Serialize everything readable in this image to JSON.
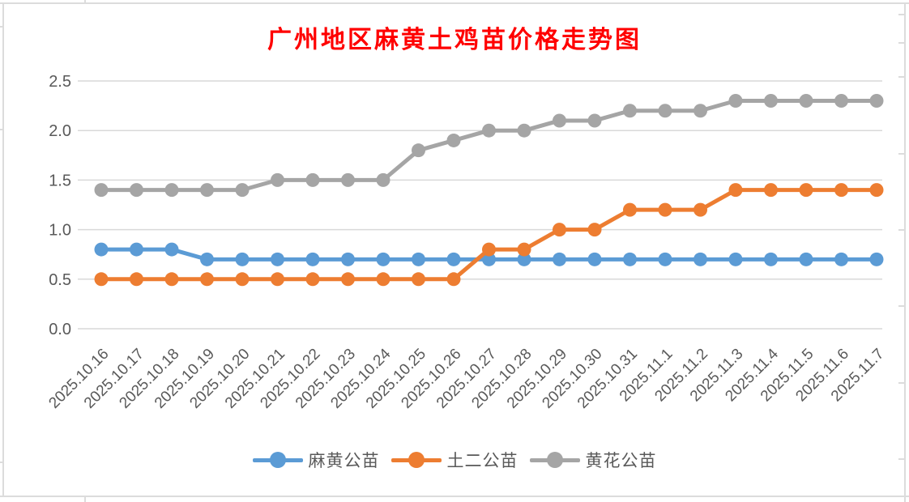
{
  "chart_data": {
    "type": "line",
    "title": "广州地区麻黄土鸡苗价格走势图",
    "title_color": "#ff0000",
    "categories": [
      "2025.10.16",
      "2025.10.17",
      "2025.10.18",
      "2025.10.19",
      "2025.10.20",
      "2025.10.21",
      "2025.10.22",
      "2025.10.23",
      "2025.10.24",
      "2025.10.25",
      "2025.10.26",
      "2025.10.27",
      "2025.10.28",
      "2025.10.29",
      "2025.10.30",
      "2025.10.31",
      "2025.11.1",
      "2025.11.2",
      "2025.11.3",
      "2025.11.4",
      "2025.11.5",
      "2025.11.6",
      "2025.11.7"
    ],
    "series": [
      {
        "name": "麻黄公苗",
        "color": "#5B9BD5",
        "values": [
          0.8,
          0.8,
          0.8,
          0.7,
          0.7,
          0.7,
          0.7,
          0.7,
          0.7,
          0.7,
          0.7,
          0.7,
          0.7,
          0.7,
          0.7,
          0.7,
          0.7,
          0.7,
          0.7,
          0.7,
          0.7,
          0.7,
          0.7
        ]
      },
      {
        "name": "土二公苗",
        "color": "#ED7D31",
        "values": [
          0.5,
          0.5,
          0.5,
          0.5,
          0.5,
          0.5,
          0.5,
          0.5,
          0.5,
          0.5,
          0.5,
          0.8,
          0.8,
          1.0,
          1.0,
          1.2,
          1.2,
          1.2,
          1.4,
          1.4,
          1.4,
          1.4,
          1.4
        ]
      },
      {
        "name": "黄花公苗",
        "color": "#A5A5A5",
        "values": [
          1.4,
          1.4,
          1.4,
          1.4,
          1.4,
          1.5,
          1.5,
          1.5,
          1.5,
          1.8,
          1.9,
          2.0,
          2.0,
          2.1,
          2.1,
          2.2,
          2.2,
          2.2,
          2.3,
          2.3,
          2.3,
          2.3,
          2.3
        ]
      }
    ],
    "xlabel": "",
    "ylabel": "",
    "ylim": [
      0,
      2.5
    ],
    "y_ticks": [
      "0.0",
      "0.5",
      "1.0",
      "1.5",
      "2.0",
      "2.5"
    ],
    "y_tick_values": [
      0,
      0.5,
      1.0,
      1.5,
      2.0,
      2.5
    ],
    "grid": true,
    "grid_color": "#d9d9d9",
    "axis_text_color": "#595959",
    "legend_position": "bottom"
  }
}
